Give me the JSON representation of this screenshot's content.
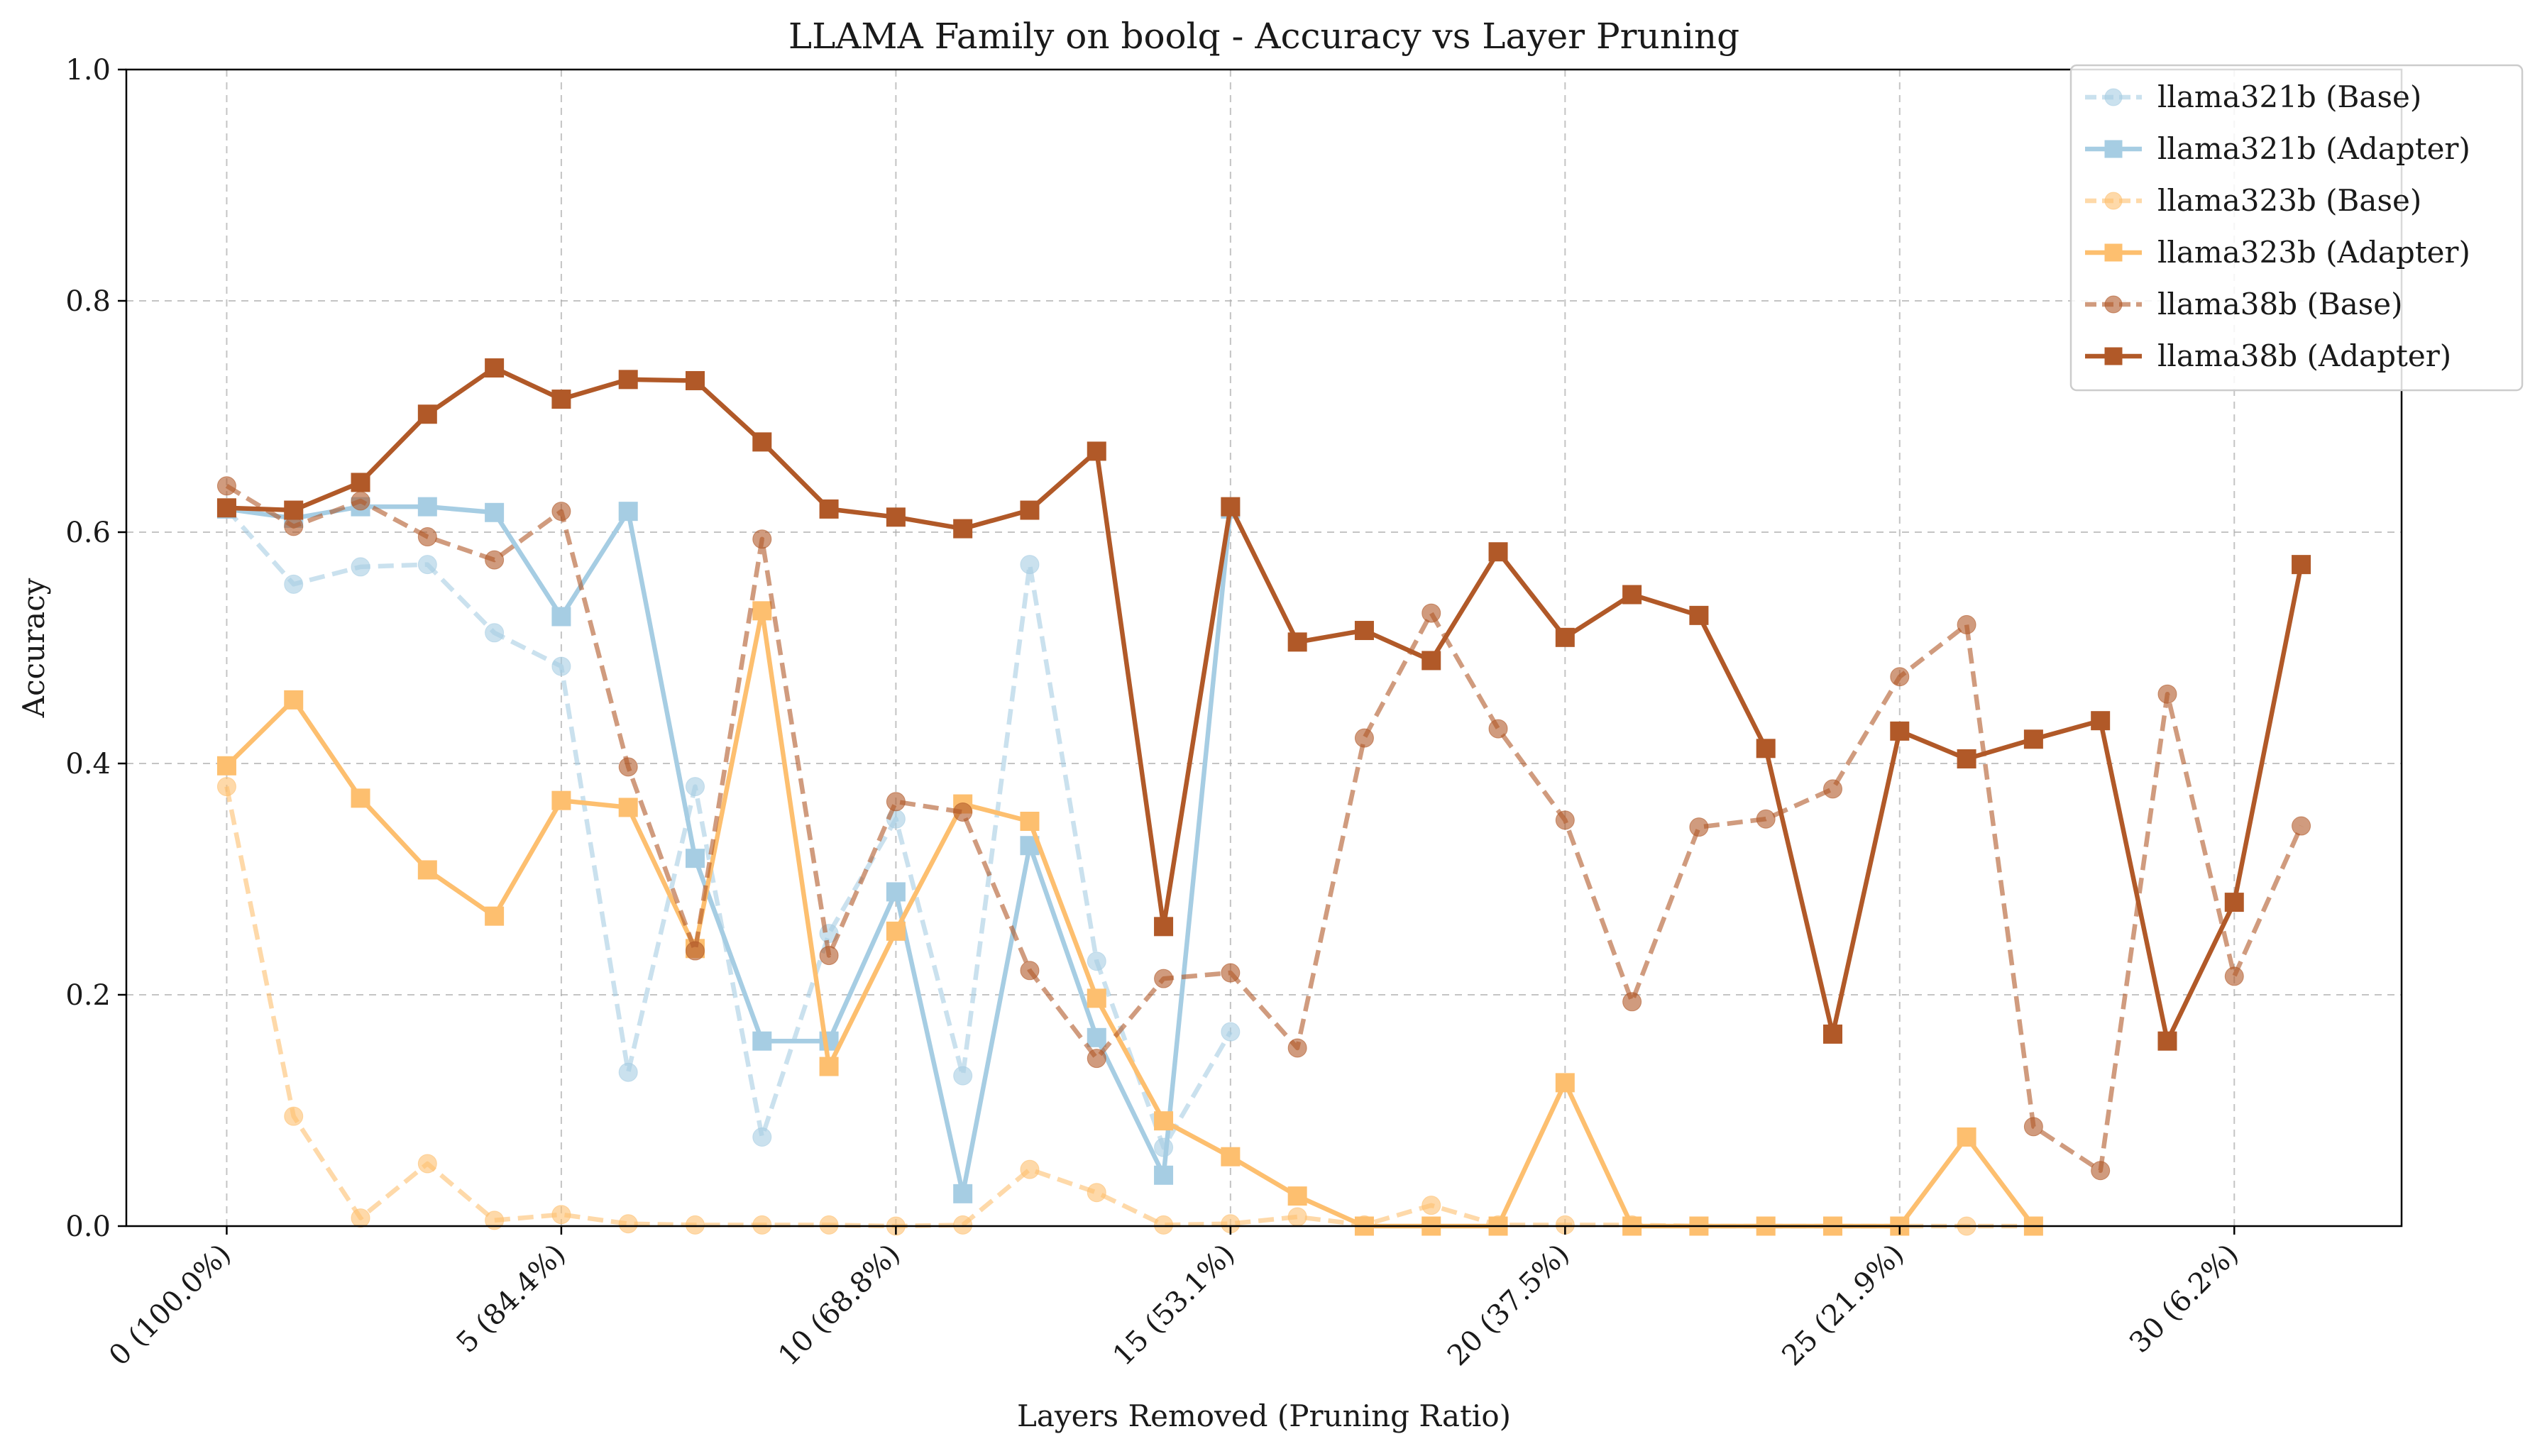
{
  "chart_data": {
    "type": "line",
    "title": "LLAMA Family on boolq - Accuracy vs Layer Pruning",
    "xlabel": "Layers Removed (Pruning Ratio)",
    "ylabel": "Accuracy",
    "xlim": [
      -1.5,
      32.5
    ],
    "ylim": [
      0.0,
      1.0
    ],
    "grid": true,
    "legend_position": "upper-right",
    "x_ticks": [
      {
        "value": 0,
        "label": "0 (100.0%)"
      },
      {
        "value": 5,
        "label": "5 (84.4%)"
      },
      {
        "value": 10,
        "label": "10 (68.8%)"
      },
      {
        "value": 15,
        "label": "15 (53.1%)"
      },
      {
        "value": 20,
        "label": "20 (37.5%)"
      },
      {
        "value": 25,
        "label": "25 (21.9%)"
      },
      {
        "value": 30,
        "label": "30 (6.2%)"
      }
    ],
    "y_ticks": [
      {
        "value": 0.0,
        "label": "0.0"
      },
      {
        "value": 0.2,
        "label": "0.2"
      },
      {
        "value": 0.4,
        "label": "0.4"
      },
      {
        "value": 0.6,
        "label": "0.6"
      },
      {
        "value": 0.8,
        "label": "0.8"
      },
      {
        "value": 1.0,
        "label": "1.0"
      }
    ],
    "series": [
      {
        "name": "llama321b (Base)",
        "color": "#a6cde3",
        "style": "dashed",
        "marker": "circle",
        "alpha": 0.6,
        "x": [
          0,
          1,
          2,
          3,
          4,
          5,
          6,
          7,
          8,
          9,
          10,
          11,
          12,
          13,
          14,
          15
        ],
        "y": [
          0.62,
          0.555,
          0.57,
          0.572,
          0.513,
          0.484,
          0.133,
          0.38,
          0.077,
          0.253,
          0.352,
          0.13,
          0.572,
          0.229,
          0.068,
          0.168
        ]
      },
      {
        "name": "llama321b (Adapter)",
        "color": "#a6cde3",
        "style": "solid",
        "marker": "square",
        "alpha": 1.0,
        "x": [
          0,
          1,
          2,
          3,
          4,
          5,
          6,
          7,
          8,
          9,
          10,
          11,
          12,
          13,
          14,
          15
        ],
        "y": [
          0.62,
          0.612,
          0.622,
          0.622,
          0.617,
          0.527,
          0.618,
          0.318,
          0.16,
          0.16,
          0.289,
          0.028,
          0.329,
          0.163,
          0.044,
          0.62
        ]
      },
      {
        "name": "llama323b (Base)",
        "color": "#fdbf6f",
        "style": "dashed",
        "marker": "circle",
        "alpha": 0.6,
        "x": [
          0,
          1,
          2,
          3,
          4,
          5,
          6,
          7,
          8,
          9,
          10,
          11,
          12,
          13,
          14,
          15,
          16,
          17,
          18,
          19,
          20,
          21,
          22,
          23,
          24,
          25,
          26,
          27
        ],
        "y": [
          0.38,
          0.095,
          0.007,
          0.054,
          0.005,
          0.01,
          0.002,
          0.001,
          0.001,
          0.001,
          0.0,
          0.001,
          0.049,
          0.029,
          0.001,
          0.002,
          0.008,
          0.001,
          0.018,
          0.001,
          0.001,
          0.001,
          0.0,
          0.0,
          0.0,
          0.0,
          0.0,
          0.0
        ]
      },
      {
        "name": "llama323b (Adapter)",
        "color": "#fdbf6f",
        "style": "solid",
        "marker": "square",
        "alpha": 1.0,
        "x": [
          0,
          1,
          2,
          3,
          4,
          5,
          6,
          7,
          8,
          9,
          10,
          11,
          12,
          13,
          14,
          15,
          16,
          17,
          18,
          19,
          20,
          21,
          22,
          23,
          24,
          25,
          26,
          27
        ],
        "y": [
          0.398,
          0.455,
          0.37,
          0.308,
          0.268,
          0.368,
          0.362,
          0.24,
          0.532,
          0.138,
          0.255,
          0.365,
          0.35,
          0.197,
          0.091,
          0.06,
          0.026,
          0.0,
          0.0,
          0.0,
          0.124,
          0.0,
          0.0,
          0.0,
          0.0,
          0.0,
          0.077,
          0.0
        ]
      },
      {
        "name": "llama38b (Base)",
        "color": "#b15928",
        "style": "dashed",
        "marker": "circle",
        "alpha": 0.6,
        "x": [
          0,
          1,
          2,
          3,
          4,
          5,
          6,
          7,
          8,
          9,
          10,
          11,
          12,
          13,
          14,
          15,
          16,
          17,
          18,
          19,
          20,
          21,
          22,
          23,
          24,
          25,
          26,
          27,
          28,
          29,
          30,
          31
        ],
        "y": [
          0.64,
          0.605,
          0.627,
          0.596,
          0.576,
          0.618,
          0.397,
          0.238,
          0.594,
          0.234,
          0.367,
          0.358,
          0.221,
          0.145,
          0.214,
          0.219,
          0.154,
          0.422,
          0.53,
          0.43,
          0.351,
          0.194,
          0.345,
          0.352,
          0.378,
          0.475,
          0.52,
          0.086,
          0.048,
          0.46,
          0.216,
          0.346
        ]
      },
      {
        "name": "llama38b (Adapter)",
        "color": "#b15928",
        "style": "solid",
        "marker": "square",
        "alpha": 1.0,
        "x": [
          0,
          1,
          2,
          3,
          4,
          5,
          6,
          7,
          8,
          9,
          10,
          11,
          12,
          13,
          14,
          15,
          16,
          17,
          18,
          19,
          20,
          21,
          22,
          23,
          24,
          25,
          26,
          27,
          28,
          29,
          30,
          31
        ],
        "y": [
          0.621,
          0.619,
          0.643,
          0.702,
          0.742,
          0.715,
          0.732,
          0.731,
          0.678,
          0.62,
          0.613,
          0.603,
          0.619,
          0.67,
          0.259,
          0.622,
          0.505,
          0.515,
          0.489,
          0.583,
          0.509,
          0.546,
          0.528,
          0.413,
          0.166,
          0.428,
          0.404,
          0.421,
          0.437,
          0.16,
          0.28,
          0.572
        ]
      }
    ]
  }
}
